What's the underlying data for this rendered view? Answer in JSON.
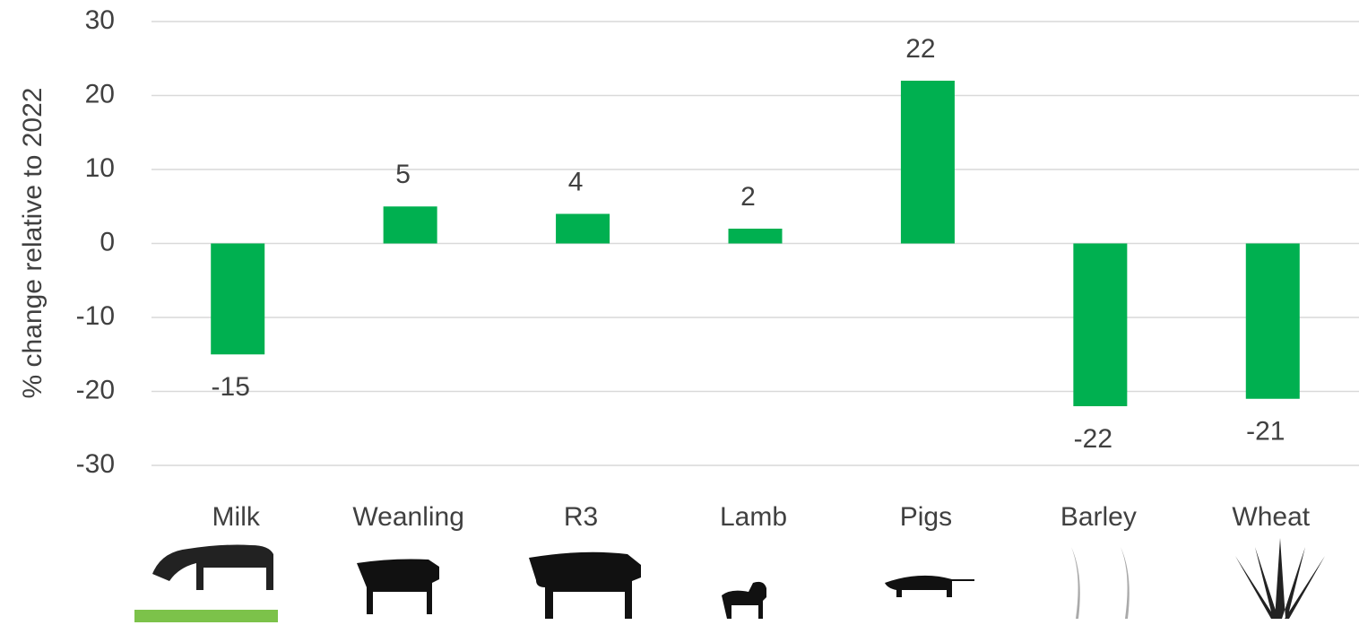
{
  "chart_data": {
    "type": "bar",
    "y_label": "% change relative to 2022",
    "categories": [
      "Milk",
      "Weanling",
      "R3",
      "Lamb",
      "Pigs",
      "Barley",
      "Wheat"
    ],
    "values": [
      -15,
      5,
      4,
      2,
      22,
      -22,
      -21
    ],
    "color": "#00b050",
    "ylim": [
      -30,
      30
    ],
    "yticks": [
      -30,
      -20,
      -10,
      0,
      10,
      20,
      30
    ],
    "grid": true
  }
}
